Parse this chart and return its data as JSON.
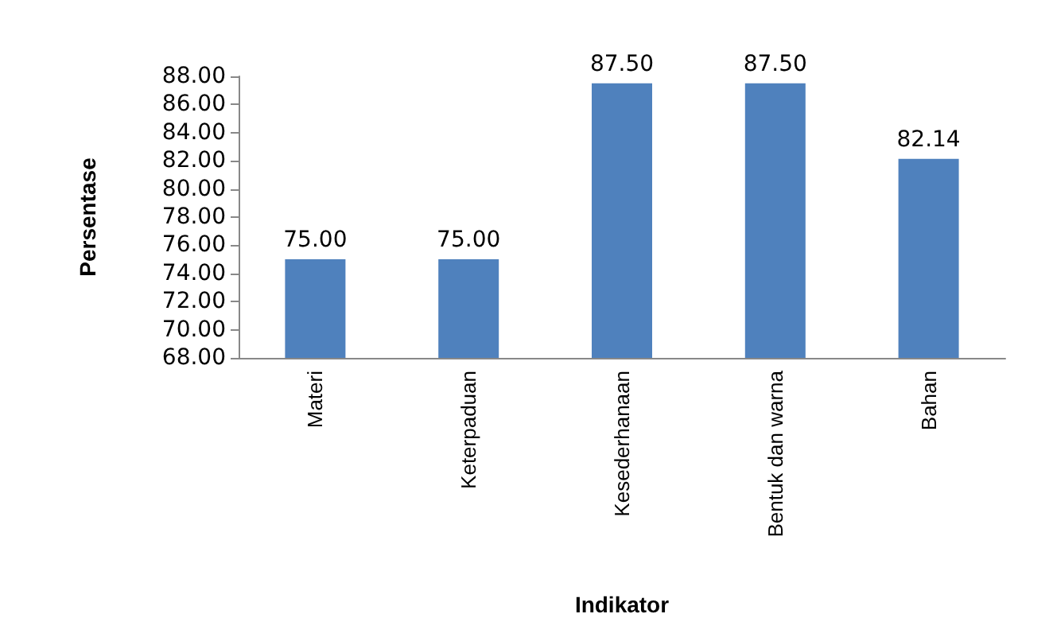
{
  "chart_data": {
    "type": "bar",
    "xlabel": "Indikator",
    "ylabel": "Persentase",
    "categories": [
      "Materi",
      "Keterpaduan",
      "Kesederhanaan",
      "Bentuk dan warna",
      "Bahan"
    ],
    "values": [
      75.0,
      75.0,
      87.5,
      87.5,
      82.14
    ],
    "value_labels": [
      "75.00",
      "75.00",
      "87.50",
      "87.50",
      "82.14"
    ],
    "color": "#4f81bd",
    "ylim": [
      68,
      88
    ],
    "yticks": [
      {
        "value": 68,
        "label": "68.00"
      },
      {
        "value": 70,
        "label": "70.00"
      },
      {
        "value": 72,
        "label": "72.00"
      },
      {
        "value": 74,
        "label": "74.00"
      },
      {
        "value": 76,
        "label": "76.00"
      },
      {
        "value": 78,
        "label": "78.00"
      },
      {
        "value": 80,
        "label": "80.00"
      },
      {
        "value": 82,
        "label": "82.00"
      },
      {
        "value": 84,
        "label": "84.00"
      },
      {
        "value": 86,
        "label": "86.00"
      },
      {
        "value": 88,
        "label": "88.00"
      }
    ],
    "grid": false
  }
}
